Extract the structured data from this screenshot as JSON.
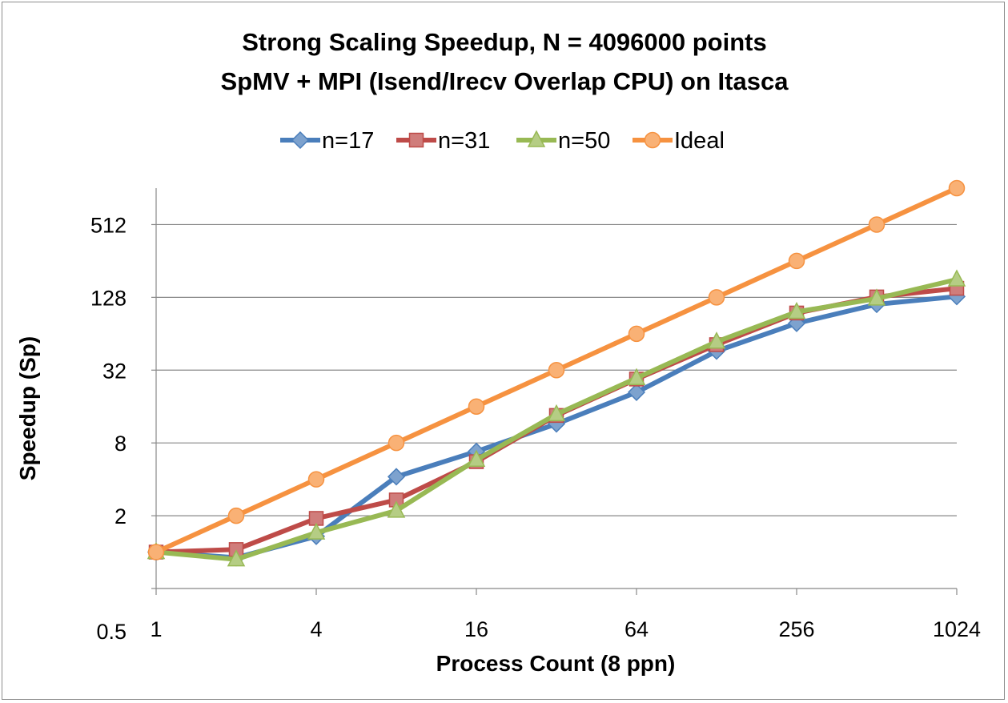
{
  "chart_data": {
    "type": "line",
    "title_line1": "Strong Scaling Speedup, N = 4096000 points",
    "title_line2": "SpMV + MPI (Isend/Irecv Overlap CPU) on Itasca",
    "xlabel": "Process Count (8 ppn)",
    "ylabel": "Speedup (Sp)",
    "x_scale": "log2",
    "y_scale": "log2",
    "xlim": [
      1,
      1024
    ],
    "ylim": [
      0.5,
      1024
    ],
    "x_ticks": [
      "1",
      "4",
      "16",
      "64",
      "256",
      "1024"
    ],
    "y_ticks": [
      "0.5",
      "2",
      "8",
      "32",
      "128",
      "512"
    ],
    "grid": "horizontal",
    "legend_position": "top",
    "x": [
      1,
      2,
      4,
      8,
      16,
      32,
      64,
      128,
      256,
      512,
      1024
    ],
    "series": [
      {
        "name": "n=17",
        "color": "#4a7ebb",
        "marker": "diamond",
        "values": [
          1.0,
          0.9,
          1.35,
          4.2,
          6.8,
          11.5,
          21,
          46,
          78,
          112,
          130
        ]
      },
      {
        "name": "n=31",
        "color": "#be4b48",
        "marker": "square",
        "values": [
          1.0,
          1.05,
          1.9,
          2.7,
          5.6,
          13.5,
          27,
          52,
          95,
          129,
          152
        ]
      },
      {
        "name": "n=50",
        "color": "#98b954",
        "marker": "triangle",
        "values": [
          1.0,
          0.87,
          1.45,
          2.2,
          5.8,
          13.8,
          27.5,
          55,
          97,
          125,
          180
        ]
      },
      {
        "name": "Ideal",
        "color": "#f69240",
        "marker": "circle",
        "values": [
          1,
          2,
          4,
          8,
          16,
          32,
          64,
          128,
          256,
          512,
          1024
        ]
      }
    ]
  }
}
